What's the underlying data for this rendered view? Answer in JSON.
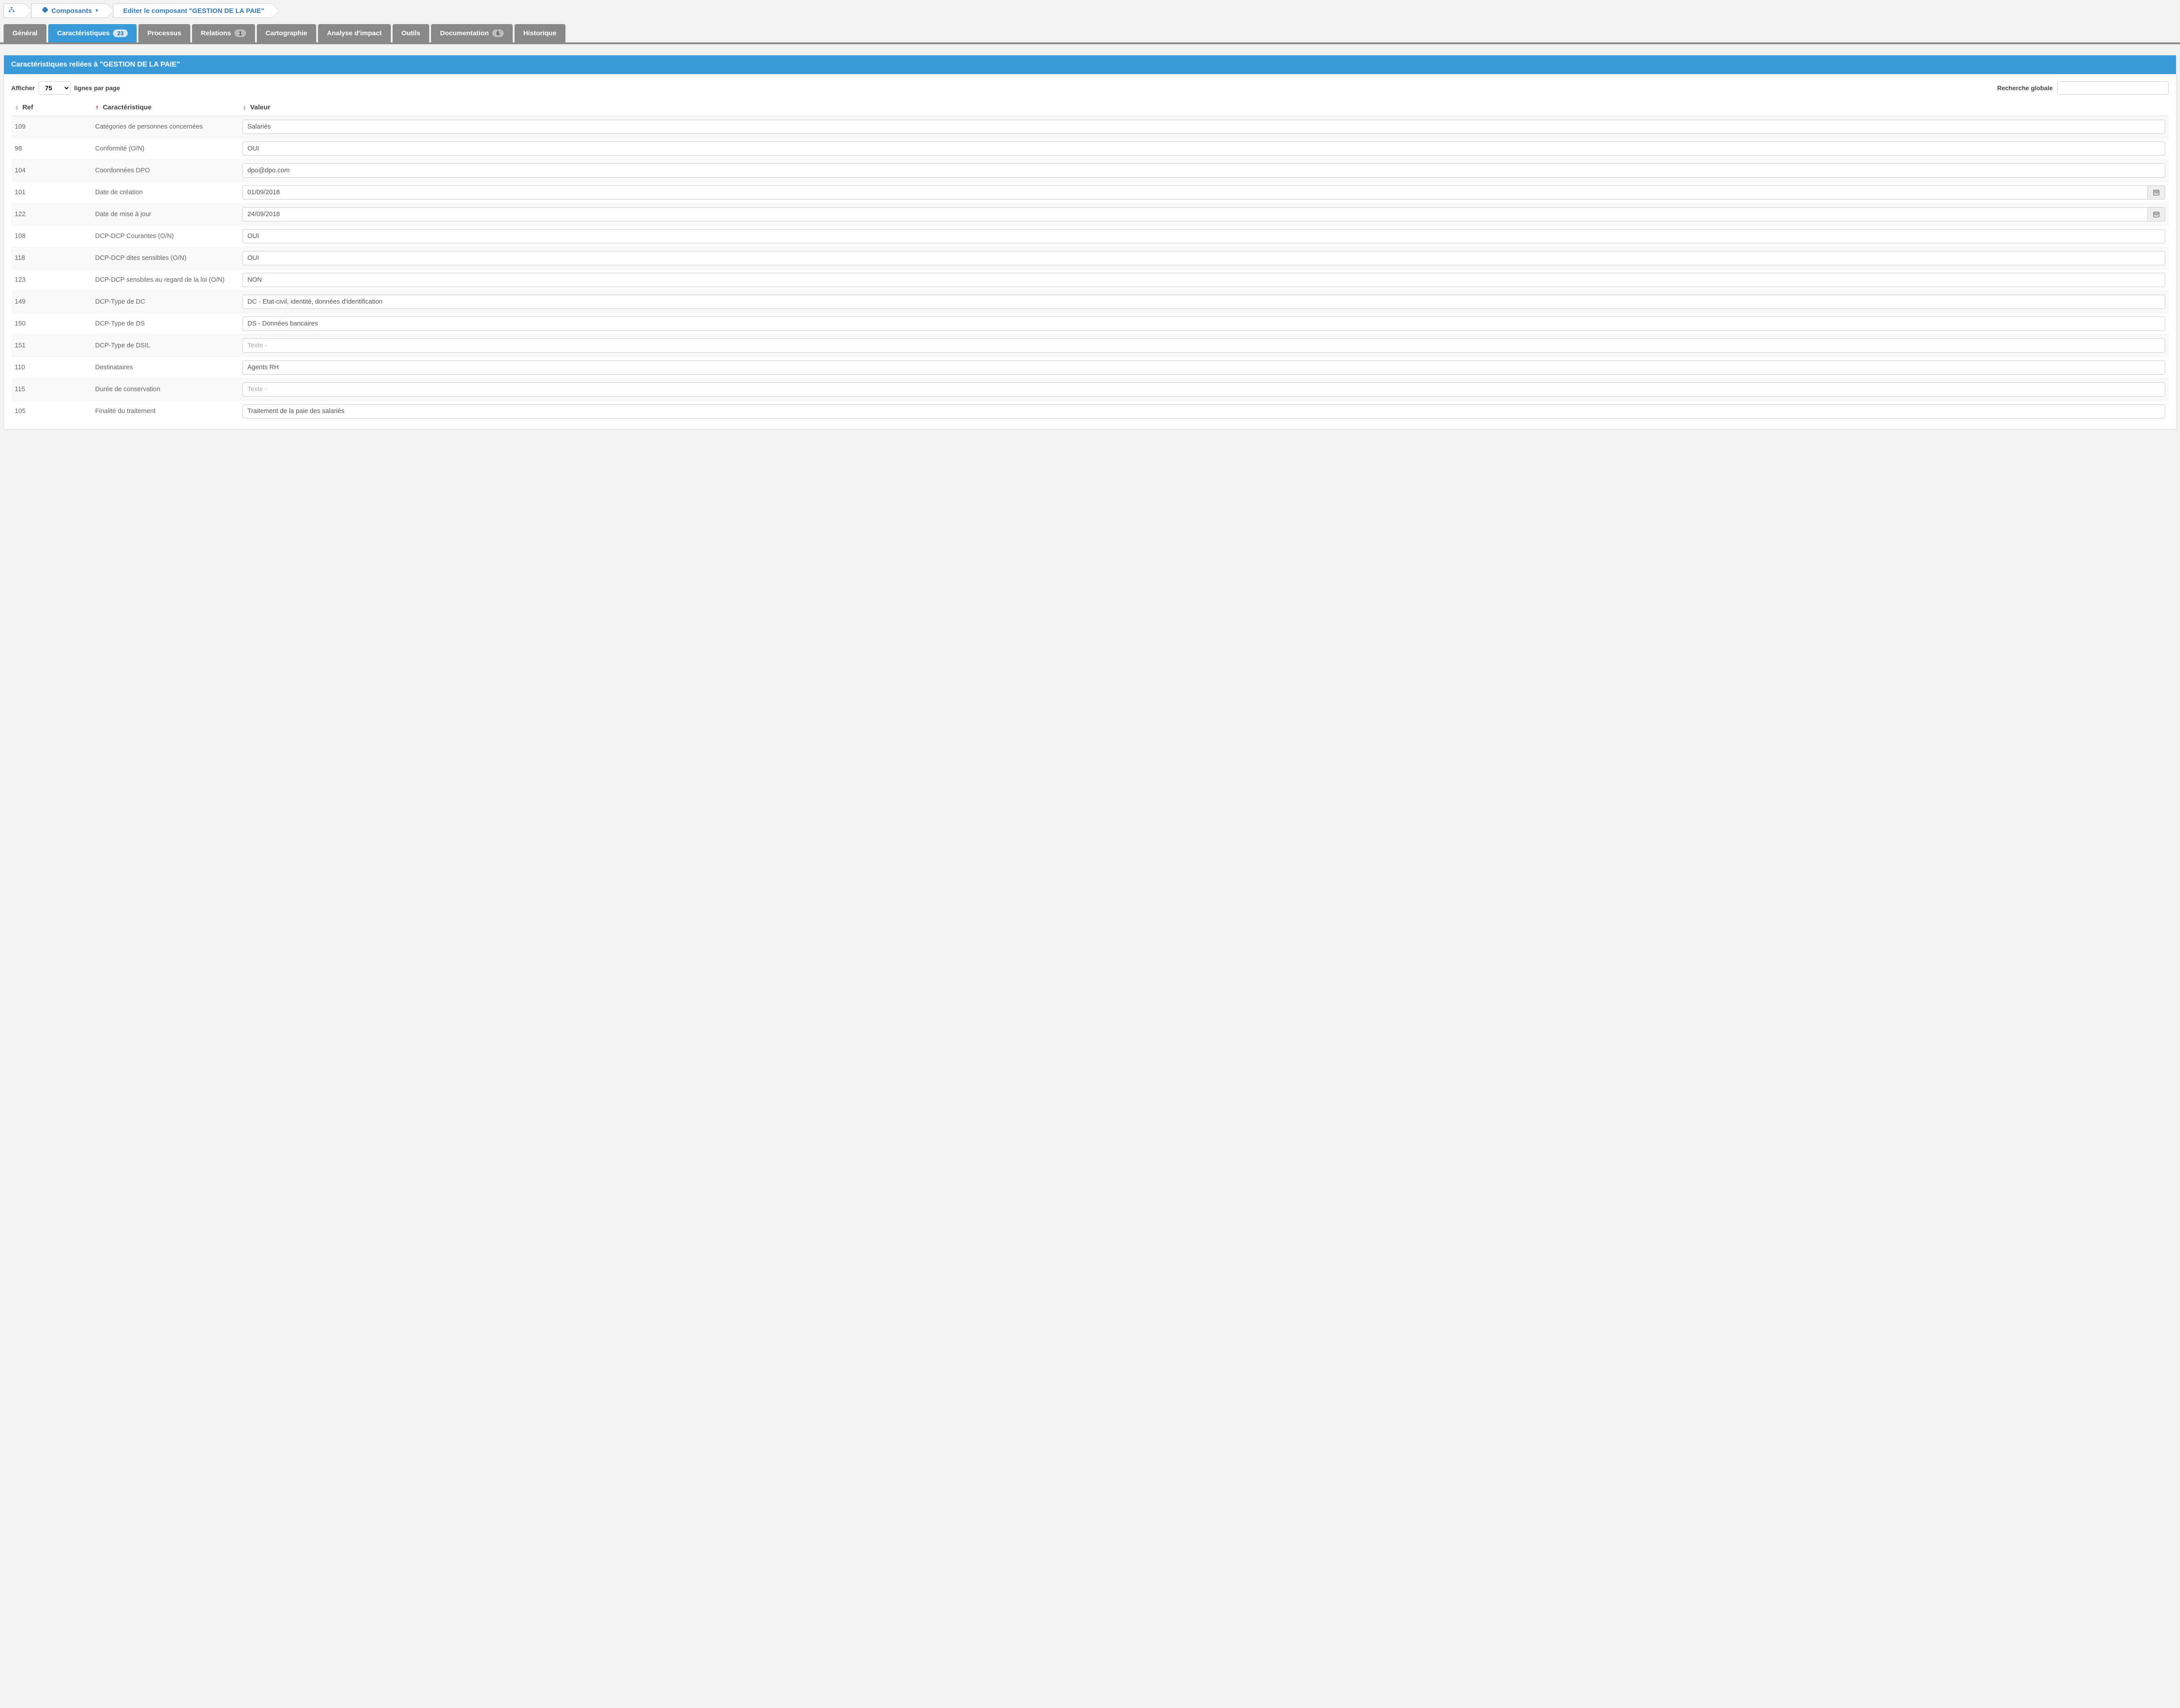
{
  "breadcrumb": {
    "home_icon": "sitemap-icon",
    "components_label": "Composants",
    "puzzle_icon": "puzzle-icon",
    "edit_label": "Editer le composant \"GESTION DE LA PAIE\""
  },
  "tabs": [
    {
      "label": "Général",
      "badge": null,
      "active": false
    },
    {
      "label": "Caractéristiques",
      "badge": "23",
      "active": true
    },
    {
      "label": "Processus",
      "badge": null,
      "active": false
    },
    {
      "label": "Relations",
      "badge": "1",
      "active": false
    },
    {
      "label": "Cartographie",
      "badge": null,
      "active": false
    },
    {
      "label": "Analyse d'impact",
      "badge": null,
      "active": false
    },
    {
      "label": "Outils",
      "badge": null,
      "active": false
    },
    {
      "label": "Documentation",
      "badge": "6",
      "active": false
    },
    {
      "label": "Historique",
      "badge": null,
      "active": false
    }
  ],
  "panel": {
    "title": "Caractéristiques reliées à \"GESTION DE LA PAIE\"",
    "display_label": "Afficher",
    "per_page_value": "75",
    "per_page_suffix": "lignes par page",
    "search_label": "Recherche globale",
    "search_value": "",
    "columns": {
      "ref": "Ref",
      "char": "Caractéristique",
      "val": "Valeur"
    },
    "placeholder_text": "Texte -",
    "rows": [
      {
        "ref": "109",
        "char": "Catégories de personnes concernées",
        "val": "Salariés",
        "type": "text"
      },
      {
        "ref": "98",
        "char": "Conformité (O/N)",
        "val": "OUI",
        "type": "text"
      },
      {
        "ref": "104",
        "char": "Coordonnées DPO",
        "val": "dpo@dpo.com",
        "type": "text"
      },
      {
        "ref": "101",
        "char": "Date de création",
        "val": "01/09/2018",
        "type": "date"
      },
      {
        "ref": "122",
        "char": "Date de mise à jour",
        "val": "24/09/2018",
        "type": "date"
      },
      {
        "ref": "108",
        "char": "DCP-DCP Courantes (O/N)",
        "val": "OUI",
        "type": "text"
      },
      {
        "ref": "118",
        "char": "DCP-DCP dites sensibles (O/N)",
        "val": "OUI",
        "type": "text"
      },
      {
        "ref": "123",
        "char": "DCP-DCP sensbiles au regard de la loi (O/N)",
        "val": "NON",
        "type": "text"
      },
      {
        "ref": "149",
        "char": "DCP-Type de DC",
        "val": "DC - Etat-civil, identité, données d'identification",
        "type": "text"
      },
      {
        "ref": "150",
        "char": "DCP-Type de DS",
        "val": "DS - Données bancaires",
        "type": "text"
      },
      {
        "ref": "151",
        "char": "DCP-Type de DSIL",
        "val": "",
        "type": "placeholder"
      },
      {
        "ref": "110",
        "char": "Destinataires",
        "val": "Agents RH",
        "type": "text"
      },
      {
        "ref": "115",
        "char": "Durée de conservation",
        "val": "",
        "type": "placeholder"
      },
      {
        "ref": "105",
        "char": "Finalité du traitement",
        "val": "Traitement de la paie des salariés",
        "type": "text"
      }
    ]
  },
  "colors": {
    "accent": "#3a9ad9",
    "tab_inactive": "#888888",
    "link": "#337ab7",
    "border": "#cccccc",
    "bg": "#f2f2f2"
  }
}
